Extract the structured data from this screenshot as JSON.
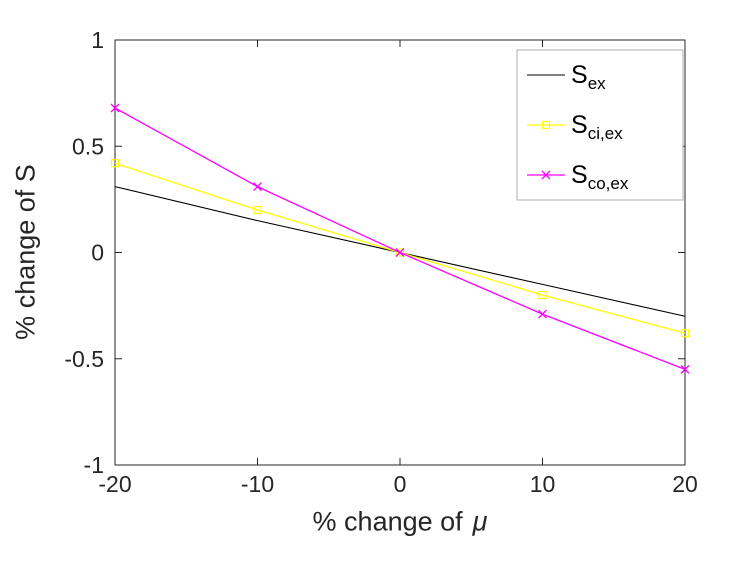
{
  "chart_data": {
    "type": "line",
    "x": [
      -20,
      -10,
      0,
      10,
      20
    ],
    "series": [
      {
        "name": "S_ex",
        "label_main": "S",
        "label_sub": "ex",
        "color": "#000000",
        "marker": "none",
        "line_width": 1.1,
        "values": [
          0.31,
          0.15,
          0,
          -0.15,
          -0.3
        ]
      },
      {
        "name": "S_ci,ex",
        "label_main": "S",
        "label_sub": "ci,ex",
        "color": "#ffff00",
        "marker": "square",
        "line_width": 1.3,
        "values": [
          0.42,
          0.2,
          0,
          -0.2,
          -0.38
        ]
      },
      {
        "name": "S_co,ex",
        "label_main": "S",
        "label_sub": "co,ex",
        "color": "#ff00ff",
        "marker": "x",
        "line_width": 1.3,
        "values": [
          0.68,
          0.31,
          0,
          -0.29,
          -0.55
        ]
      }
    ],
    "xlabel": "% change of",
    "xlabel_symbol": "μ",
    "ylabel": "% change of S",
    "xlim": [
      -20,
      20
    ],
    "ylim": [
      -1,
      1
    ],
    "xticks": [
      -20,
      -10,
      0,
      10,
      20
    ],
    "xtick_labels": [
      "-20",
      "-10",
      "0",
      "10",
      "20"
    ],
    "yticks": [
      -1,
      -0.5,
      0,
      0.5,
      1
    ],
    "ytick_labels": [
      "-1",
      "-0.5",
      "0",
      "0.5",
      "1"
    ],
    "grid": false,
    "legend_position": "top-right",
    "legend_edge_color": "#adadad",
    "axis_color": "#262626",
    "tick_label_color": "#262626",
    "background": "#ffffff"
  }
}
